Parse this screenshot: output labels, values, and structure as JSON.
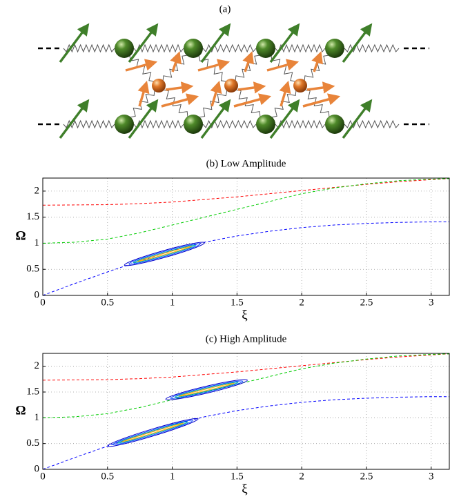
{
  "figure_label": "(a)",
  "chart_data": [
    {
      "type": "line",
      "title": "(b) Low Amplitude",
      "x_label": "ξ",
      "y_label": "Ω",
      "xlim": [
        0,
        3.14
      ],
      "ylim": [
        0,
        2.25
      ],
      "xticks": [
        0,
        0.5,
        1,
        1.5,
        2,
        2.5,
        3
      ],
      "yticks": [
        0,
        0.5,
        1,
        1.5,
        2
      ],
      "grid": true,
      "x": [
        0,
        0.25,
        0.5,
        0.75,
        1,
        1.25,
        1.5,
        1.75,
        2,
        2.25,
        2.5,
        2.75,
        3,
        3.14
      ],
      "series": [
        {
          "color": "#ff0000",
          "values": [
            1.73,
            1.735,
            1.74,
            1.76,
            1.79,
            1.84,
            1.89,
            1.95,
            2.01,
            2.07,
            2.13,
            2.18,
            2.22,
            2.24
          ]
        },
        {
          "color": "#00cc00",
          "values": [
            1.0,
            1.02,
            1.08,
            1.2,
            1.35,
            1.5,
            1.65,
            1.8,
            1.95,
            2.06,
            2.14,
            2.2,
            2.23,
            2.24
          ]
        },
        {
          "color": "#0000ff",
          "values": [
            0,
            0.23,
            0.45,
            0.66,
            0.86,
            1.02,
            1.14,
            1.23,
            1.3,
            1.35,
            1.38,
            1.4,
            1.41,
            1.41
          ]
        }
      ],
      "regions": [
        {
          "x": [
            0.63,
            1.25
          ],
          "y": [
            0.58,
            1.01
          ]
        }
      ]
    },
    {
      "type": "line",
      "title": "(c) High Amplitude",
      "x_label": "ξ",
      "y_label": "Ω",
      "xlim": [
        0,
        3.14
      ],
      "ylim": [
        0,
        2.25
      ],
      "xticks": [
        0,
        0.5,
        1,
        1.5,
        2,
        2.5,
        3
      ],
      "yticks": [
        0,
        0.5,
        1,
        1.5,
        2
      ],
      "grid": true,
      "x": [
        0,
        0.25,
        0.5,
        0.75,
        1,
        1.25,
        1.5,
        1.75,
        2,
        2.25,
        2.5,
        2.75,
        3,
        3.14
      ],
      "series": [
        {
          "color": "#ff0000",
          "values": [
            1.73,
            1.735,
            1.74,
            1.76,
            1.79,
            1.84,
            1.89,
            1.95,
            2.01,
            2.07,
            2.13,
            2.18,
            2.22,
            2.24
          ]
        },
        {
          "color": "#00cc00",
          "values": [
            1.0,
            1.02,
            1.08,
            1.2,
            1.35,
            1.5,
            1.65,
            1.8,
            1.95,
            2.06,
            2.14,
            2.2,
            2.23,
            2.24
          ]
        },
        {
          "color": "#0000ff",
          "values": [
            0,
            0.23,
            0.45,
            0.66,
            0.86,
            1.02,
            1.14,
            1.23,
            1.3,
            1.35,
            1.38,
            1.4,
            1.41,
            1.41
          ]
        }
      ],
      "regions": [
        {
          "x": [
            0.5,
            1.2
          ],
          "y": [
            0.45,
            0.98
          ]
        },
        {
          "x": [
            0.95,
            1.58
          ],
          "y": [
            1.36,
            1.73
          ]
        }
      ]
    }
  ]
}
